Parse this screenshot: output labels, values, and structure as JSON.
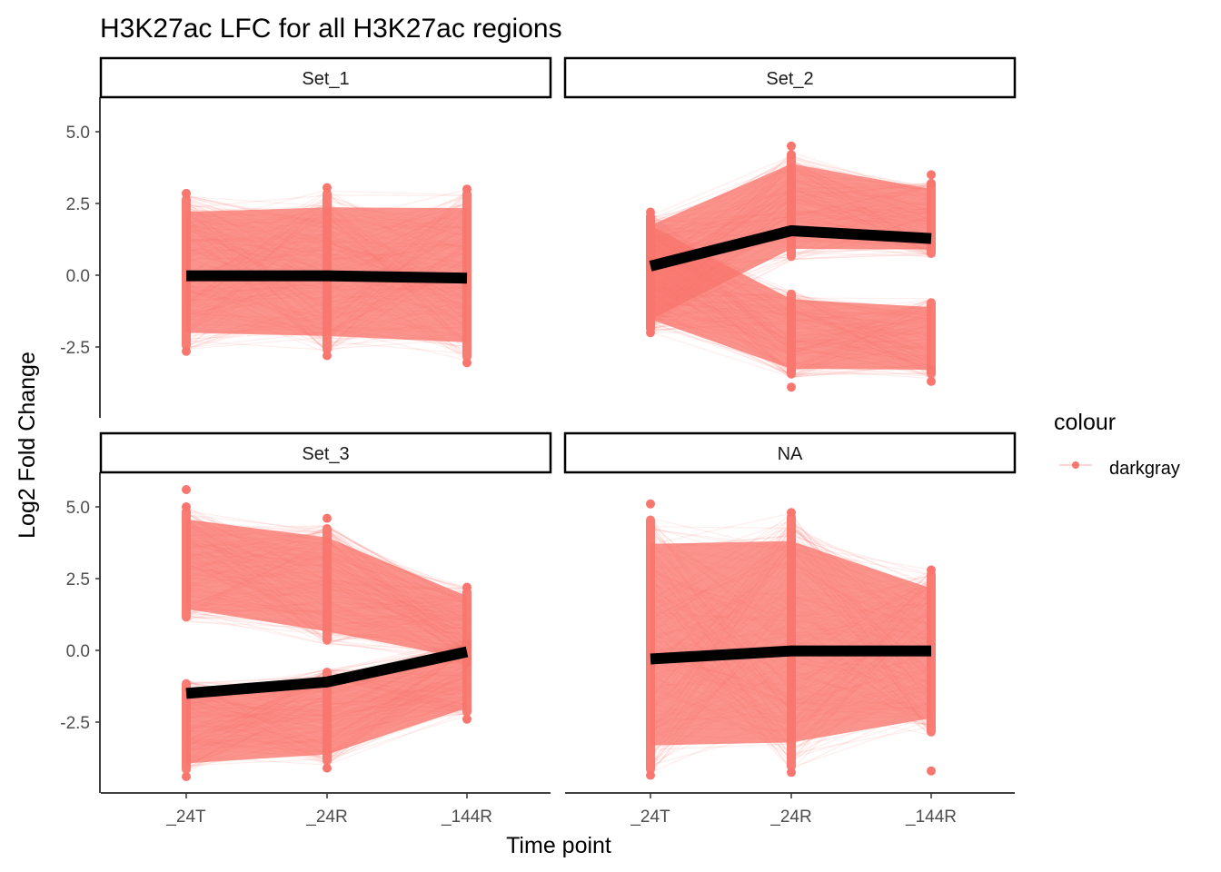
{
  "chart_data": {
    "type": "line",
    "title": "H3K27ac LFC  for all H3K27ac regions",
    "xlabel": "Time point",
    "ylabel": "Log2 Fold Change",
    "categories": [
      "_24T",
      "_24R",
      "_144R"
    ],
    "yticks": [
      5.0,
      2.5,
      0.0,
      -2.5
    ],
    "ytick_labels": [
      "5.0",
      "2.5",
      "0.0",
      "-2.5"
    ],
    "ylim": [
      -4.6,
      6.1
    ],
    "colors": {
      "individual": "#F8766D",
      "mean": "#000000"
    },
    "legend": {
      "title": "colour",
      "label": "darkgray",
      "position": "right"
    },
    "panels": [
      {
        "strip": "Set_1",
        "mean": [
          -0.02,
          -0.02,
          -0.1
        ],
        "bands": [
          {
            "lo": [
              -2.6,
              -2.75,
              -3.0
            ],
            "hi": [
              2.8,
              3.0,
              3.0
            ],
            "density": 0.85
          }
        ],
        "points": [
          [
            0,
            2.85
          ],
          [
            0,
            -2.65
          ],
          [
            1,
            3.05
          ],
          [
            1,
            -2.8
          ],
          [
            2,
            3.0
          ],
          [
            2,
            -3.05
          ]
        ]
      },
      {
        "strip": "Set_2",
        "mean": [
          0.32,
          1.55,
          1.28
        ],
        "bands": [
          {
            "lo": [
              -2.0,
              0.5,
              0.6
            ],
            "hi": [
              2.2,
              4.3,
              3.3
            ],
            "density": 0.6
          },
          {
            "lo": [
              -2.0,
              -3.6,
              -3.6
            ],
            "hi": [
              2.2,
              -0.5,
              -0.8
            ],
            "density": 0.6
          }
        ],
        "points": [
          [
            0,
            2.2
          ],
          [
            0,
            -2.0
          ],
          [
            1,
            4.5
          ],
          [
            1,
            4.2
          ],
          [
            1,
            -3.9
          ],
          [
            1,
            -3.4
          ],
          [
            2,
            3.5
          ],
          [
            2,
            3.2
          ],
          [
            2,
            -3.7
          ],
          [
            2,
            -3.3
          ]
        ]
      },
      {
        "strip": "Set_3",
        "mean": [
          -1.5,
          -1.1,
          -0.05
        ],
        "bands": [
          {
            "lo": [
              1.0,
              0.2,
              -0.6
            ],
            "hi": [
              5.0,
              4.4,
              2.2
            ],
            "density": 0.7
          },
          {
            "lo": [
              -4.3,
              -4.0,
              -2.3
            ],
            "hi": [
              -1.0,
              -0.6,
              0.4
            ],
            "density": 0.7
          }
        ],
        "points": [
          [
            0,
            5.6
          ],
          [
            0,
            5.0
          ],
          [
            0,
            -4.4
          ],
          [
            1,
            4.6
          ],
          [
            1,
            -4.1
          ],
          [
            2,
            2.2
          ],
          [
            2,
            -2.4
          ]
        ]
      },
      {
        "strip": "NA",
        "mean": [
          -0.3,
          -0.02,
          -0.02
        ],
        "bands": [
          {
            "lo": [
              -4.3,
              -4.2,
              -3.0
            ],
            "hi": [
              4.7,
              4.8,
              2.8
            ],
            "density": 0.85
          }
        ],
        "points": [
          [
            0,
            5.1
          ],
          [
            0,
            -4.35
          ],
          [
            1,
            4.8
          ],
          [
            1,
            -4.25
          ],
          [
            2,
            2.8
          ],
          [
            2,
            -4.2
          ]
        ]
      }
    ]
  }
}
